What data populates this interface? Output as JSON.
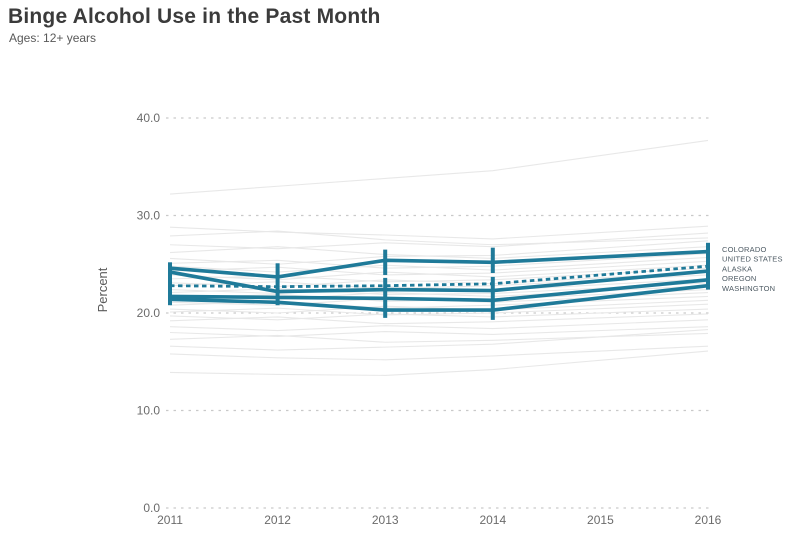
{
  "header": {
    "title": "Binge Alcohol Use in the Past Month",
    "subtitle": "Ages: 12+ years"
  },
  "colors": {
    "accent": "#1f7a99",
    "grid": "#c9c9c9",
    "background_line": "#e8e8e8",
    "title_text": "#3b3b3b",
    "tick_text": "#6b6b6b",
    "legend_text": "#4d5a63"
  },
  "chart_data": {
    "type": "line",
    "title": "Binge Alcohol Use in the Past Month",
    "subtitle": "Ages: 12+ years",
    "xlabel": "",
    "ylabel": "Percent",
    "x": [
      2011,
      2012,
      2013,
      2014,
      2016
    ],
    "x_axis": {
      "ticks": [
        2011,
        2012,
        2013,
        2014,
        2015,
        2016
      ],
      "range": [
        2011,
        2016
      ]
    },
    "y_axis": {
      "ticks": [
        0,
        10,
        20,
        30,
        40
      ],
      "tick_labels": [
        "0.0",
        "10.0",
        "20.0",
        "30.0",
        "40.0"
      ],
      "range": [
        0,
        40
      ],
      "grid": "dashed"
    },
    "legend_position": "right",
    "series": [
      {
        "key": "colorado",
        "label": "COLORADO",
        "dashed": false,
        "values": [
          24.6,
          23.7,
          25.4,
          25.2,
          26.3
        ]
      },
      {
        "key": "united-states",
        "label": "UNITED STATES",
        "dashed": true,
        "values": [
          22.8,
          22.7,
          22.8,
          23.0,
          24.8
        ]
      },
      {
        "key": "alaska",
        "label": "ALASKA",
        "dashed": false,
        "values": [
          24.2,
          22.2,
          22.4,
          22.3,
          24.3
        ]
      },
      {
        "key": "oregon",
        "label": "OREGON",
        "dashed": false,
        "values": [
          21.7,
          21.6,
          21.5,
          21.3,
          23.4
        ]
      },
      {
        "key": "washington",
        "label": "WASHINGTON",
        "dashed": false,
        "values": [
          21.4,
          21.1,
          20.3,
          20.3,
          22.8
        ]
      }
    ],
    "error_bars": [
      {
        "x": 2011,
        "ranges": [
          [
            20.8,
            25.2
          ]
        ]
      },
      {
        "x": 2012,
        "ranges": [
          [
            20.8,
            25.1
          ]
        ]
      },
      {
        "x": 2013,
        "ranges": [
          [
            23.9,
            26.5
          ],
          [
            19.5,
            23.6
          ]
        ]
      },
      {
        "x": 2014,
        "ranges": [
          [
            24.1,
            26.7
          ],
          [
            19.3,
            23.7
          ]
        ]
      },
      {
        "x": 2016,
        "ranges": [
          [
            22.4,
            27.2
          ]
        ]
      }
    ],
    "background_series_values": [
      [
        32.2,
        33.0,
        33.8,
        34.6,
        37.7
      ],
      [
        28.8,
        28.3,
        28.0,
        27.6,
        28.9
      ],
      [
        27.9,
        28.4,
        27.5,
        27.0,
        27.7
      ],
      [
        27.0,
        26.6,
        27.2,
        26.8,
        28.2
      ],
      [
        26.2,
        26.8,
        26.0,
        25.6,
        26.8
      ],
      [
        25.6,
        25.0,
        25.8,
        25.9,
        27.4
      ],
      [
        25.1,
        25.4,
        24.6,
        24.8,
        26.1
      ],
      [
        24.8,
        24.2,
        24.9,
        24.4,
        25.7
      ],
      [
        24.3,
        24.7,
        23.9,
        24.1,
        25.3
      ],
      [
        23.9,
        23.4,
        24.2,
        23.7,
        24.9
      ],
      [
        23.5,
        23.8,
        23.2,
        23.4,
        24.6
      ],
      [
        23.1,
        22.7,
        23.4,
        23.0,
        24.2
      ],
      [
        22.8,
        23.2,
        22.5,
        22.8,
        23.9
      ],
      [
        22.4,
        22.0,
        22.7,
        22.3,
        23.5
      ],
      [
        22.1,
        22.5,
        21.9,
        22.0,
        23.1
      ],
      [
        21.8,
        21.4,
        22.1,
        21.7,
        22.8
      ],
      [
        21.5,
        21.9,
        21.2,
        21.4,
        22.4
      ],
      [
        21.1,
        20.8,
        21.5,
        21.1,
        22.1
      ],
      [
        20.8,
        21.2,
        20.5,
        20.8,
        21.7
      ],
      [
        20.4,
        20.0,
        20.7,
        20.3,
        21.3
      ],
      [
        20.1,
        20.5,
        19.8,
        20.0,
        20.9
      ],
      [
        19.7,
        19.3,
        19.9,
        19.6,
        20.4
      ],
      [
        19.2,
        19.6,
        18.9,
        19.1,
        19.9
      ],
      [
        18.6,
        18.2,
        18.7,
        18.4,
        19.3
      ],
      [
        18.0,
        17.6,
        18.1,
        17.8,
        18.6
      ],
      [
        17.3,
        17.7,
        17.0,
        17.2,
        17.9
      ],
      [
        16.6,
        16.2,
        16.5,
        16.8,
        18.3
      ],
      [
        15.8,
        15.4,
        15.2,
        15.6,
        16.6
      ],
      [
        13.9,
        13.7,
        13.6,
        14.2,
        16.1
      ]
    ]
  }
}
